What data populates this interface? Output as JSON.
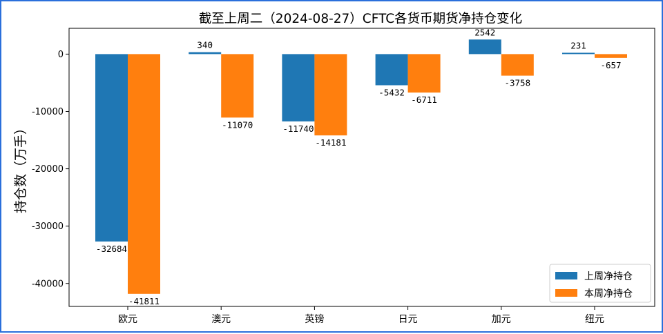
{
  "chart_data": {
    "type": "bar",
    "title": "截至上周二（2024-08-27）CFTC各货币期货净持仓变化",
    "xlabel": "",
    "ylabel": "持仓数（万手）",
    "categories": [
      "欧元",
      "澳元",
      "英镑",
      "日元",
      "加元",
      "纽元"
    ],
    "series": [
      {
        "name": "上周净持仓",
        "color": "#1f77b4",
        "values": [
          -32684,
          340,
          -11740,
          -5432,
          2542,
          231
        ]
      },
      {
        "name": "本周净持仓",
        "color": "#ff7f0e",
        "values": [
          -41811,
          -11070,
          -14181,
          -6711,
          -3758,
          -657
        ]
      }
    ],
    "yticks": [
      0,
      -10000,
      -20000,
      -30000,
      -40000
    ],
    "ylim": [
      -44000,
      4500
    ],
    "grid": false,
    "legend_position": "lower-right"
  }
}
